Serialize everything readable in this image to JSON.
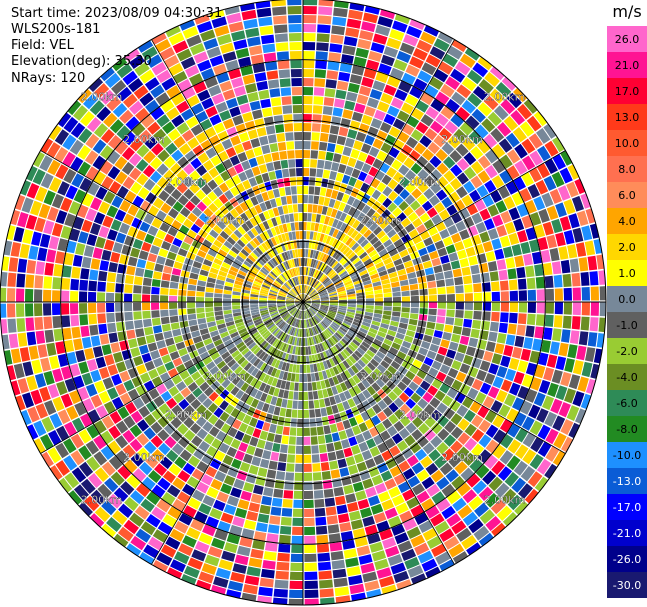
{
  "header": {
    "start_time": "Start time: 2023/08/09 04:30:31",
    "instrument": "WLS200s-181",
    "field": "Field: VEL",
    "elevation": "Elevation(deg): 35.30",
    "nrays": "NRays: 120"
  },
  "chart_data": {
    "type": "heatmap",
    "projection": "polar PPI",
    "field": "VEL",
    "units": "m/s",
    "elevation_deg": 35.3,
    "n_rays": 120,
    "max_range_km": 5.0,
    "range_rings_km": [
      1,
      2,
      3,
      4,
      5
    ],
    "ring_label": "2.00km",
    "colorbar": {
      "title": "m/s",
      "ticks": [
        "26.0",
        "21.0",
        "17.0",
        "13.0",
        "10.0",
        "8.0",
        "6.0",
        "4.0",
        "2.0",
        "1.0",
        "0.0",
        "-1.0",
        "-2.0",
        "-4.0",
        "-6.0",
        "-8.0",
        "-10.0",
        "-13.0",
        "-17.0",
        "-21.0",
        "-26.0",
        "-30.0"
      ],
      "colors": [
        "#ff66cc",
        "#ff1493",
        "#ff0033",
        "#ff3a1a",
        "#ff5a30",
        "#ff7050",
        "#ff8c5a",
        "#ffa500",
        "#ffd700",
        "#ffff00",
        "#778899",
        "#606060",
        "#99cc33",
        "#6b8e23",
        "#2e8b57",
        "#228b22",
        "#1e90ff",
        "#0a5cd6",
        "#0000ff",
        "#0000cd",
        "#00008b",
        "#191970"
      ]
    },
    "pattern": {
      "inner_positive_sector": "north",
      "inner_negative_sector": "south",
      "outer_rings": "noisy"
    }
  }
}
